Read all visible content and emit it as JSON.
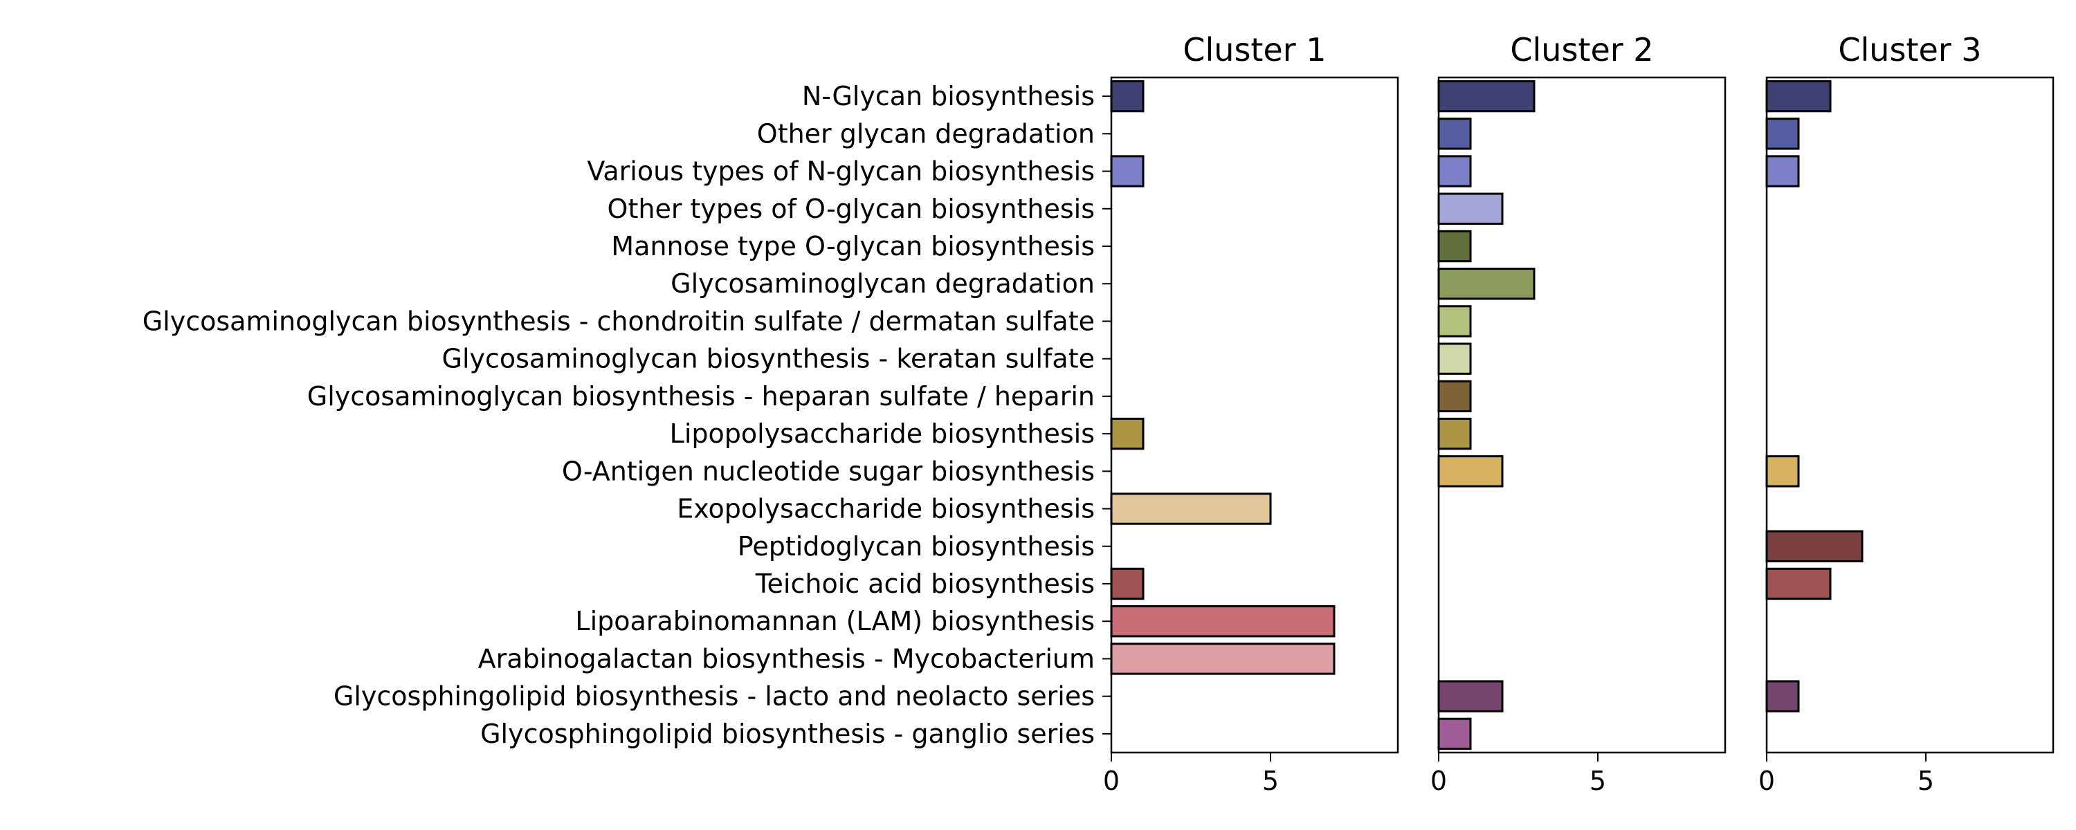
{
  "chart_data": {
    "type": "bar",
    "orientation": "horizontal",
    "categories": [
      "N-Glycan biosynthesis",
      "Other glycan degradation",
      "Various types of N-glycan biosynthesis",
      "Other types of O-glycan biosynthesis",
      "Mannose type O-glycan biosynthesis",
      "Glycosaminoglycan degradation",
      "Glycosaminoglycan biosynthesis - chondroitin sulfate / dermatan sulfate",
      "Glycosaminoglycan biosynthesis - keratan sulfate",
      "Glycosaminoglycan biosynthesis - heparan sulfate / heparin",
      "Lipopolysaccharide biosynthesis",
      "O-Antigen nucleotide sugar biosynthesis",
      "Exopolysaccharide biosynthesis",
      "Peptidoglycan biosynthesis",
      "Teichoic acid biosynthesis",
      "Lipoarabinomannan (LAM) biosynthesis",
      "Arabinogalactan biosynthesis - Mycobacterium",
      "Glycosphingolipid biosynthesis - lacto and neolacto series",
      "Glycosphingolipid biosynthesis - ganglio series"
    ],
    "colors": [
      "#3f4175",
      "#545ea1",
      "#7b80c9",
      "#a3a6d6",
      "#5f6e3a",
      "#8b9b5c",
      "#b0c27c",
      "#cfd8aa",
      "#7d6336",
      "#ac9545",
      "#d6b15f",
      "#e0c699",
      "#7a3f3e",
      "#a05151",
      "#c96b72",
      "#dd9fa3",
      "#77446f",
      "#a05c96"
    ],
    "panels": [
      {
        "title": "Cluster 1",
        "values": [
          1,
          0,
          1,
          0,
          0,
          0,
          0,
          0,
          0,
          1,
          0,
          5,
          0,
          1,
          7,
          7,
          0,
          0
        ]
      },
      {
        "title": "Cluster 2",
        "values": [
          3,
          1,
          1,
          2,
          1,
          3,
          1,
          1,
          1,
          1,
          2,
          0,
          0,
          0,
          0,
          0,
          2,
          1
        ]
      },
      {
        "title": "Cluster 3",
        "values": [
          2,
          1,
          1,
          0,
          0,
          0,
          0,
          0,
          0,
          0,
          1,
          0,
          3,
          2,
          0,
          0,
          1,
          0
        ]
      }
    ],
    "xlim": [
      0,
      9
    ],
    "xticks": [
      0,
      5
    ],
    "xlabel": "",
    "ylabel": "",
    "grid": false,
    "legend": "none"
  }
}
